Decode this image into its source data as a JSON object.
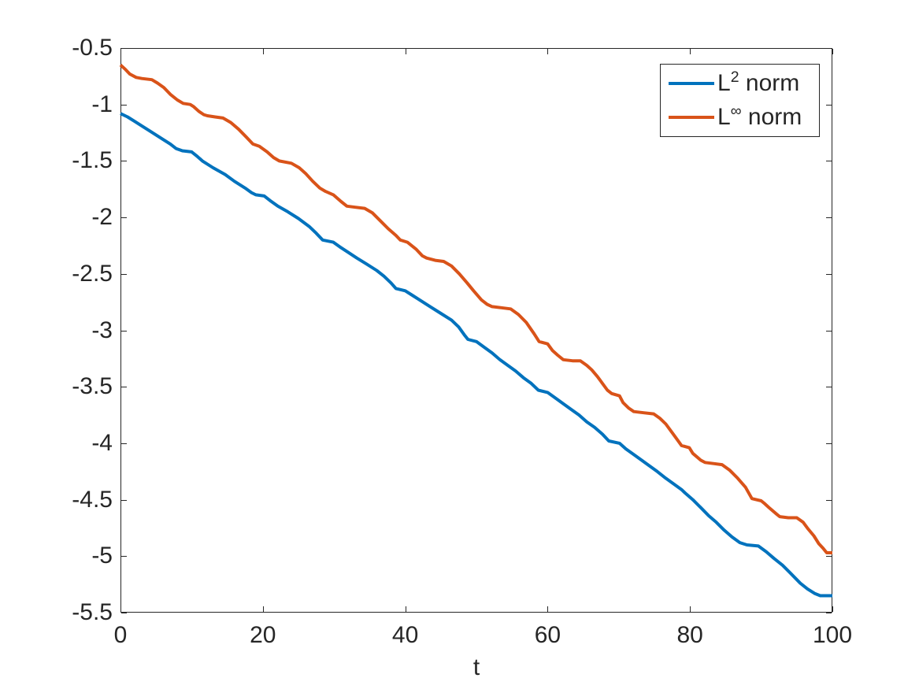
{
  "figure": {
    "background": "#ffffff",
    "axes_color": "#262626",
    "text_color": "#262626"
  },
  "legend": {
    "position": "top-right",
    "items": [
      {
        "base": "L",
        "sup": "2",
        "rest": " norm",
        "color": "#0072BD"
      },
      {
        "base": "L",
        "sup": "∞",
        "rest": " norm",
        "color": "#D95319"
      }
    ]
  },
  "chart_data": {
    "type": "line",
    "title": "",
    "xlabel": "t",
    "ylabel": "",
    "xlim": [
      0,
      100
    ],
    "ylim": [
      -5.5,
      -0.5
    ],
    "grid": false,
    "box": true,
    "legend_position": "top-right",
    "x_ticks": [
      0,
      20,
      40,
      60,
      80,
      100
    ],
    "x_tick_labels": [
      "0",
      "20",
      "40",
      "60",
      "80",
      "100"
    ],
    "y_ticks": [
      -0.5,
      -1,
      -1.5,
      -2,
      -2.5,
      -3,
      -3.5,
      -4,
      -4.5,
      -5,
      -5.5
    ],
    "y_tick_labels": [
      "-0.5",
      "-1",
      "-1.5",
      "-2",
      "-2.5",
      "-3",
      "-3.5",
      "-4",
      "-4.5",
      "-5",
      "-5.5"
    ],
    "line_width": 4,
    "series": [
      {
        "name": "L^2 norm",
        "color": "#0072BD",
        "points": [
          [
            0,
            -1.08
          ],
          [
            1,
            -1.11
          ],
          [
            2,
            -1.15
          ],
          [
            3,
            -1.19
          ],
          [
            4,
            -1.23
          ],
          [
            5,
            -1.27
          ],
          [
            6,
            -1.31
          ],
          [
            7,
            -1.35
          ],
          [
            7.8,
            -1.39
          ],
          [
            8.7,
            -1.41
          ],
          [
            10,
            -1.42
          ],
          [
            10.8,
            -1.46
          ],
          [
            11.5,
            -1.5
          ],
          [
            13,
            -1.56
          ],
          [
            14.7,
            -1.62
          ],
          [
            16,
            -1.68
          ],
          [
            17.5,
            -1.74
          ],
          [
            18.4,
            -1.78
          ],
          [
            19,
            -1.8
          ],
          [
            20.2,
            -1.81
          ],
          [
            21,
            -1.85
          ],
          [
            22.1,
            -1.9
          ],
          [
            23.5,
            -1.95
          ],
          [
            25,
            -2.01
          ],
          [
            26.5,
            -2.08
          ],
          [
            27.5,
            -2.14
          ],
          [
            28.4,
            -2.2
          ],
          [
            29.9,
            -2.22
          ],
          [
            30.8,
            -2.26
          ],
          [
            32,
            -2.31
          ],
          [
            33.2,
            -2.36
          ],
          [
            34.5,
            -2.41
          ],
          [
            36,
            -2.47
          ],
          [
            37,
            -2.52
          ],
          [
            38,
            -2.58
          ],
          [
            38.7,
            -2.63
          ],
          [
            40,
            -2.65
          ],
          [
            41,
            -2.69
          ],
          [
            42,
            -2.73
          ],
          [
            43.5,
            -2.79
          ],
          [
            45,
            -2.85
          ],
          [
            46.5,
            -2.91
          ],
          [
            47.5,
            -2.97
          ],
          [
            48.3,
            -3.04
          ],
          [
            48.8,
            -3.08
          ],
          [
            50,
            -3.1
          ],
          [
            51.1,
            -3.15
          ],
          [
            52.2,
            -3.2
          ],
          [
            53.3,
            -3.26
          ],
          [
            54.4,
            -3.31
          ],
          [
            55.5,
            -3.36
          ],
          [
            56.6,
            -3.42
          ],
          [
            57.7,
            -3.47
          ],
          [
            58.7,
            -3.53
          ],
          [
            60,
            -3.55
          ],
          [
            61.1,
            -3.6
          ],
          [
            62.2,
            -3.65
          ],
          [
            63.3,
            -3.7
          ],
          [
            64.4,
            -3.75
          ],
          [
            65.5,
            -3.81
          ],
          [
            66.6,
            -3.86
          ],
          [
            67.7,
            -3.92
          ],
          [
            68.6,
            -3.98
          ],
          [
            70.1,
            -4
          ],
          [
            71,
            -4.05
          ],
          [
            72.1,
            -4.1
          ],
          [
            73.2,
            -4.15
          ],
          [
            74.3,
            -4.2
          ],
          [
            75.4,
            -4.25
          ],
          [
            76.6,
            -4.31
          ],
          [
            77.7,
            -4.36
          ],
          [
            78.8,
            -4.41
          ],
          [
            79.3,
            -4.44
          ],
          [
            80.4,
            -4.5
          ],
          [
            81.5,
            -4.57
          ],
          [
            82.6,
            -4.64
          ],
          [
            83.7,
            -4.7
          ],
          [
            84.8,
            -4.77
          ],
          [
            85.9,
            -4.83
          ],
          [
            87,
            -4.88
          ],
          [
            88,
            -4.9
          ],
          [
            89.6,
            -4.91
          ],
          [
            90.7,
            -4.96
          ],
          [
            91.8,
            -5.02
          ],
          [
            93,
            -5.08
          ],
          [
            94.1,
            -5.15
          ],
          [
            95.5,
            -5.24
          ],
          [
            96.5,
            -5.29
          ],
          [
            97.5,
            -5.33
          ],
          [
            98.3,
            -5.35
          ],
          [
            100,
            -5.35
          ]
        ]
      },
      {
        "name": "L^inf norm",
        "color": "#D95319",
        "points": [
          [
            0,
            -0.65
          ],
          [
            0.7,
            -0.69
          ],
          [
            1.3,
            -0.73
          ],
          [
            2.2,
            -0.76
          ],
          [
            3,
            -0.77
          ],
          [
            4.4,
            -0.78
          ],
          [
            5.2,
            -0.81
          ],
          [
            6.1,
            -0.85
          ],
          [
            7,
            -0.91
          ],
          [
            8,
            -0.96
          ],
          [
            8.8,
            -0.99
          ],
          [
            9.8,
            -1
          ],
          [
            10.3,
            -1.02
          ],
          [
            11,
            -1.06
          ],
          [
            11.7,
            -1.09
          ],
          [
            12.2,
            -1.1
          ],
          [
            13.3,
            -1.11
          ],
          [
            14.4,
            -1.12
          ],
          [
            15.5,
            -1.16
          ],
          [
            16.6,
            -1.22
          ],
          [
            17.7,
            -1.29
          ],
          [
            18.6,
            -1.35
          ],
          [
            19.5,
            -1.37
          ],
          [
            20.6,
            -1.42
          ],
          [
            21.5,
            -1.47
          ],
          [
            22.3,
            -1.5
          ],
          [
            24,
            -1.52
          ],
          [
            25.1,
            -1.56
          ],
          [
            26,
            -1.61
          ],
          [
            27,
            -1.68
          ],
          [
            28,
            -1.74
          ],
          [
            28.8,
            -1.77
          ],
          [
            29.9,
            -1.8
          ],
          [
            31,
            -1.86
          ],
          [
            31.8,
            -1.9
          ],
          [
            33,
            -1.91
          ],
          [
            34.3,
            -1.92
          ],
          [
            35.4,
            -1.96
          ],
          [
            36.5,
            -2.03
          ],
          [
            37.6,
            -2.1
          ],
          [
            38.7,
            -2.16
          ],
          [
            39.3,
            -2.2
          ],
          [
            40.3,
            -2.22
          ],
          [
            41.5,
            -2.28
          ],
          [
            42.4,
            -2.34
          ],
          [
            43,
            -2.36
          ],
          [
            44.2,
            -2.38
          ],
          [
            45.4,
            -2.39
          ],
          [
            46.5,
            -2.43
          ],
          [
            47.6,
            -2.5
          ],
          [
            48.7,
            -2.58
          ],
          [
            49.6,
            -2.65
          ],
          [
            50.7,
            -2.73
          ],
          [
            51.5,
            -2.77
          ],
          [
            52.2,
            -2.79
          ],
          [
            53.5,
            -2.8
          ],
          [
            54.8,
            -2.81
          ],
          [
            55.9,
            -2.86
          ],
          [
            57,
            -2.93
          ],
          [
            58.1,
            -3.03
          ],
          [
            58.8,
            -3.1
          ],
          [
            60,
            -3.12
          ],
          [
            60.7,
            -3.18
          ],
          [
            61.4,
            -3.22
          ],
          [
            62.2,
            -3.26
          ],
          [
            63.5,
            -3.27
          ],
          [
            64.6,
            -3.27
          ],
          [
            65.5,
            -3.31
          ],
          [
            66.2,
            -3.35
          ],
          [
            67,
            -3.41
          ],
          [
            67.7,
            -3.47
          ],
          [
            68.4,
            -3.53
          ],
          [
            69,
            -3.56
          ],
          [
            70.1,
            -3.58
          ],
          [
            70.6,
            -3.64
          ],
          [
            71.4,
            -3.69
          ],
          [
            72.1,
            -3.72
          ],
          [
            73.5,
            -3.73
          ],
          [
            74.9,
            -3.74
          ],
          [
            75.8,
            -3.78
          ],
          [
            76.6,
            -3.83
          ],
          [
            77.3,
            -3.89
          ],
          [
            78,
            -3.95
          ],
          [
            78.8,
            -4.02
          ],
          [
            79.9,
            -4.04
          ],
          [
            80.4,
            -4.09
          ],
          [
            81.5,
            -4.15
          ],
          [
            82.1,
            -4.17
          ],
          [
            83.3,
            -4.18
          ],
          [
            84.5,
            -4.19
          ],
          [
            85.6,
            -4.24
          ],
          [
            86.7,
            -4.31
          ],
          [
            87.8,
            -4.39
          ],
          [
            88.7,
            -4.49
          ],
          [
            90,
            -4.51
          ],
          [
            90.4,
            -4.53
          ],
          [
            91.1,
            -4.57
          ],
          [
            92.2,
            -4.63
          ],
          [
            92.6,
            -4.65
          ],
          [
            93.8,
            -4.66
          ],
          [
            95,
            -4.66
          ],
          [
            95.9,
            -4.7
          ],
          [
            96.6,
            -4.76
          ],
          [
            97.4,
            -4.82
          ],
          [
            98.1,
            -4.89
          ],
          [
            98.7,
            -4.93
          ],
          [
            99.2,
            -4.97
          ],
          [
            100,
            -4.97
          ]
        ]
      }
    ]
  }
}
